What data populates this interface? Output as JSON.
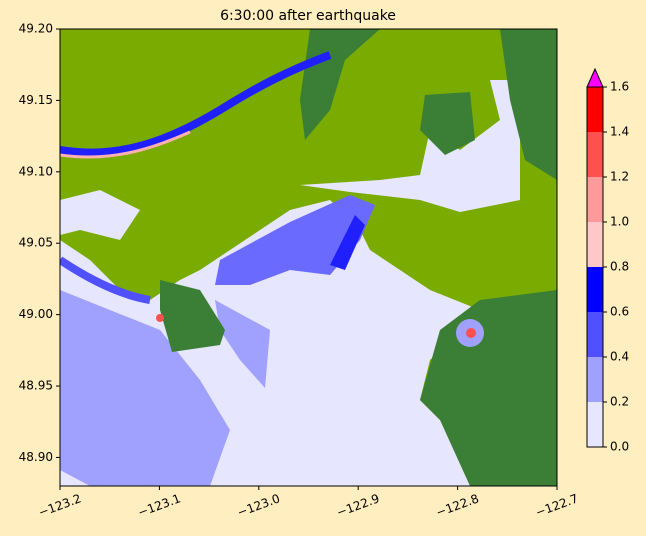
{
  "map": {
    "title": "6:30:00 after earthquake",
    "xlim": [
      -123.2,
      -122.7
    ],
    "ylim": [
      48.88,
      49.2
    ],
    "xticks": [
      {
        "value": -123.2,
        "label": "−123.2"
      },
      {
        "value": -123.1,
        "label": "−123.1"
      },
      {
        "value": -123.0,
        "label": "−123.0"
      },
      {
        "value": -122.9,
        "label": "−122.9"
      },
      {
        "value": -122.8,
        "label": "−122.8"
      },
      {
        "value": -122.7,
        "label": "−122.7"
      }
    ],
    "yticks": [
      {
        "value": 48.9,
        "label": "48.90"
      },
      {
        "value": 48.95,
        "label": "48.95"
      },
      {
        "value": 49.0,
        "label": "49.00"
      },
      {
        "value": 49.05,
        "label": "49.05"
      },
      {
        "value": 49.1,
        "label": "49.10"
      },
      {
        "value": 49.15,
        "label": "49.15"
      },
      {
        "value": 49.2,
        "label": "49.20"
      }
    ],
    "colorbar": {
      "levels": [
        0,
        0.2,
        0.4,
        0.6,
        0.8,
        1.0,
        1.2,
        1.4,
        1.6
      ],
      "colors": [
        "#e6e6ff",
        "#a0a0ff",
        "#5050ff",
        "#0000ff",
        "#ffc8c8",
        "#ff9a9a",
        "#ff5050",
        "#ff0000"
      ],
      "extend_color": "#ff00ff",
      "ticks": [
        {
          "value": 0,
          "label": "0.0"
        },
        {
          "value": 0.2,
          "label": "0.2"
        },
        {
          "value": 0.4,
          "label": "0.4"
        },
        {
          "value": 0.6,
          "label": "0.6"
        },
        {
          "value": 0.8,
          "label": "0.8"
        },
        {
          "value": 1.0,
          "label": "1.0"
        },
        {
          "value": 1.2,
          "label": "1.2"
        },
        {
          "value": 1.4,
          "label": "1.4"
        },
        {
          "value": 1.6,
          "label": "1.6"
        }
      ]
    }
  }
}
